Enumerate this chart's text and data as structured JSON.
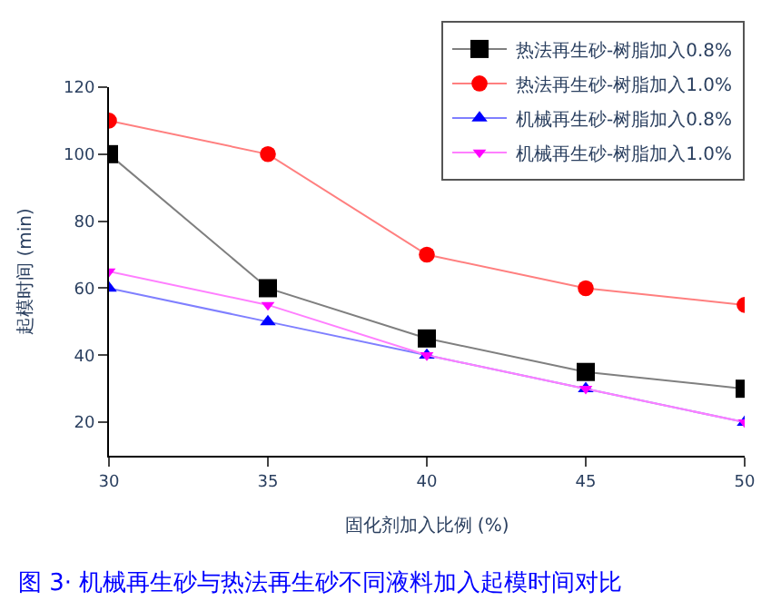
{
  "chart_data": {
    "type": "line",
    "xlabel": "固化剂加入比例 (%)",
    "ylabel": "起模时间 (min)",
    "x": [
      30,
      35,
      40,
      45,
      50
    ],
    "series": [
      {
        "name": "热法再生砂-树脂加入0.8%",
        "color": "#000000",
        "marker": "square",
        "values": [
          100,
          60,
          45,
          35,
          30
        ]
      },
      {
        "name": "热法再生砂-树脂加入1.0%",
        "color": "#ff0000",
        "marker": "circle",
        "values": [
          110,
          100,
          70,
          60,
          55
        ]
      },
      {
        "name": "机械再生砂-树脂加入0.8%",
        "color": "#0000ff",
        "marker": "triangle",
        "values": [
          60,
          50,
          40,
          30,
          20
        ]
      },
      {
        "name": "机械再生砂-树脂加入1.0%",
        "color": "#ff00ff",
        "marker": "triangle-down",
        "values": [
          65,
          55,
          40,
          30,
          20
        ]
      }
    ],
    "xlim": [
      30,
      50
    ],
    "xticks": [
      30,
      35,
      40,
      45,
      50
    ],
    "ylim": [
      10,
      120
    ],
    "yticks": [
      20,
      40,
      60,
      80,
      100,
      120
    ],
    "legend": "top right",
    "annotations": [
      "图 3· 机械再生砂与热法再生砂不同液料加入起模时间对比"
    ]
  }
}
